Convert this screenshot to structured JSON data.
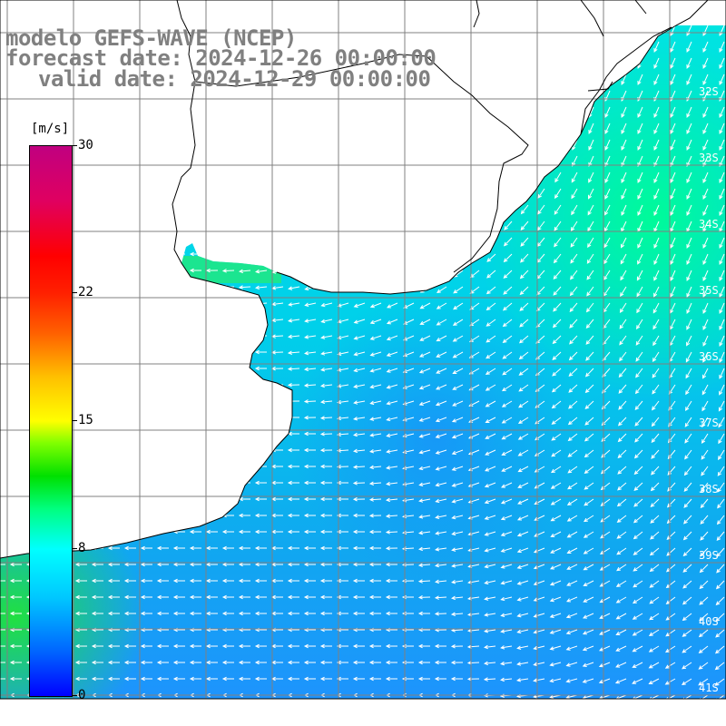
{
  "title": {
    "model": "modelo GEFS-WAVE (NCEP)",
    "forecast": "forecast date: 2024-12-26 00:00:00",
    "valid": "valid date: 2024-12-29 00:00:00"
  },
  "colorbar": {
    "unit": "[m/s]",
    "ticks": [
      "0",
      "8",
      "15",
      "22",
      "30"
    ],
    "range": [
      0,
      30
    ]
  },
  "lat_labels": [
    "32S",
    "33S",
    "34S",
    "35S",
    "36S",
    "37S",
    "38S",
    "39S",
    "40S",
    "41S"
  ],
  "colors": {
    "coast": "#000000",
    "grid": "#808080",
    "arrows": "#ffffff",
    "title": "#808080"
  }
}
